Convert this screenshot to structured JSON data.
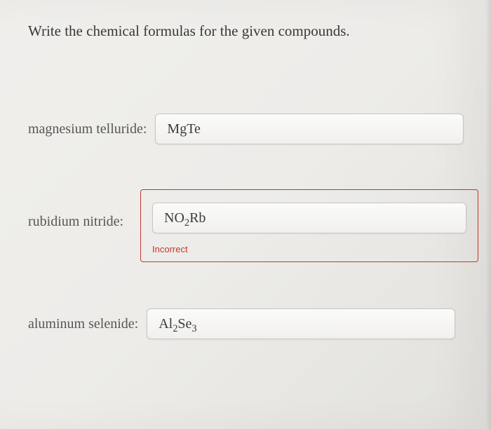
{
  "prompt": "Write the chemical formulas for the given compounds.",
  "items": [
    {
      "label": "magnesium telluride:",
      "formula_html": "MgTe",
      "status": "ok"
    },
    {
      "label": "rubidium nitride:",
      "formula_html": "NO<sub>2</sub>Rb",
      "status": "incorrect",
      "status_text": "Incorrect"
    },
    {
      "label": "aluminum selenide:",
      "formula_html": "Al<sub>2</sub>Se<sub>3</sub>",
      "status": "ok"
    }
  ],
  "colors": {
    "page_bg": "#edece9",
    "text_primary": "#383838",
    "text_secondary": "#565656",
    "input_bg": "#f8f7f5",
    "input_border": "#c6c5c1",
    "error": "#c0392b"
  }
}
